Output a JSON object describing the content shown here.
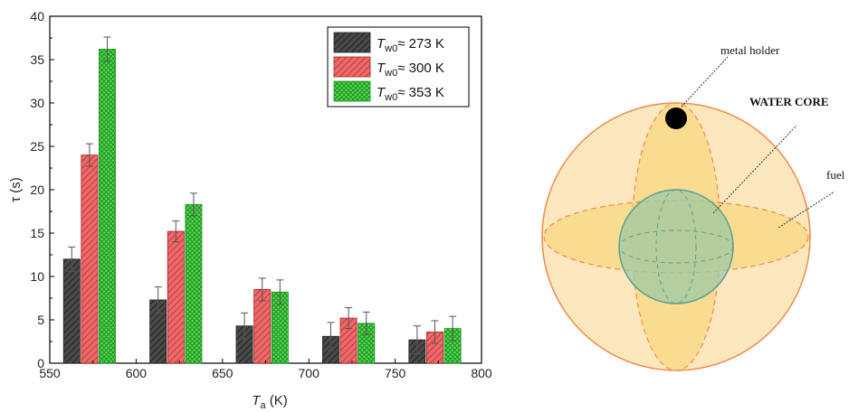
{
  "chart_data": {
    "type": "bar",
    "xlabel_main": "T",
    "xlabel_sub": "a",
    "xlabel_unit": " (K)",
    "ylabel": "τ (s)",
    "xlim": [
      550,
      800
    ],
    "ylim": [
      0,
      40
    ],
    "x_ticks": [
      "550",
      "600",
      "650",
      "700",
      "750",
      "800"
    ],
    "y_ticks": [
      "0",
      "5",
      "10",
      "15",
      "20",
      "25",
      "30",
      "35",
      "40"
    ],
    "x": [
      573,
      623,
      673,
      723,
      773
    ],
    "legend_position": "top-right",
    "series": [
      {
        "name_main": "T",
        "name_sub": "w0",
        "name_rest": "≈ 273 K",
        "color": "#4a4a4a",
        "values": [
          12.0,
          7.3,
          4.3,
          3.1,
          2.7
        ],
        "errors": [
          1.4,
          1.5,
          1.5,
          1.6,
          1.6
        ]
      },
      {
        "name_main": "T",
        "name_sub": "w0",
        "name_rest": "≈ 300 K",
        "color": "#e85555",
        "values": [
          24.0,
          15.2,
          8.5,
          5.2,
          3.6
        ],
        "errors": [
          1.3,
          1.2,
          1.3,
          1.2,
          1.3
        ]
      },
      {
        "name_main": "T",
        "name_sub": "w0",
        "name_rest": "≈ 353 K",
        "color": "#3fd23f",
        "values": [
          36.2,
          18.3,
          8.2,
          4.6,
          4.0
        ],
        "errors": [
          1.4,
          1.3,
          1.4,
          1.3,
          1.4
        ]
      }
    ]
  },
  "diagram": {
    "labels": {
      "metal_holder": "metal holder",
      "water_core": "WATER CORE",
      "fuel": "fuel"
    },
    "colors": {
      "outer_fill": "#fde7be",
      "outer_stroke": "#f08a4b",
      "ellipse_fill": "#f9d67a",
      "core_fill": "#9ecaa6",
      "core_stroke": "#5e9e8f",
      "holder": "#000000"
    }
  }
}
